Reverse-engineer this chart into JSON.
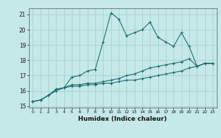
{
  "xlabel": "Humidex (Indice chaleur)",
  "bg_color": "#c5e8e8",
  "grid_color": "#a0cccc",
  "line_color": "#1a6b6b",
  "xlim": [
    -0.5,
    23.5
  ],
  "ylim": [
    14.9,
    21.4
  ],
  "yticks": [
    15,
    16,
    17,
    18,
    19,
    20,
    21
  ],
  "xticks": [
    0,
    1,
    2,
    3,
    4,
    5,
    6,
    7,
    8,
    9,
    10,
    11,
    12,
    13,
    14,
    15,
    16,
    17,
    18,
    19,
    20,
    21,
    22,
    23
  ],
  "line1_x": [
    0,
    1,
    2,
    3,
    4,
    5,
    6,
    7,
    8,
    9,
    10,
    11,
    12,
    13,
    14,
    15,
    16,
    17,
    18,
    19,
    20,
    21,
    22,
    23
  ],
  "line1_y": [
    15.3,
    15.4,
    15.7,
    16.1,
    16.2,
    16.9,
    17.0,
    17.3,
    17.4,
    19.2,
    21.1,
    20.7,
    19.6,
    19.8,
    20.0,
    20.5,
    19.5,
    19.2,
    18.9,
    19.8,
    18.9,
    17.6,
    17.8,
    17.8
  ],
  "line2_x": [
    0,
    1,
    2,
    3,
    4,
    5,
    6,
    7,
    8,
    9,
    10,
    11,
    12,
    13,
    14,
    15,
    16,
    17,
    18,
    19,
    20,
    21,
    22,
    23
  ],
  "line2_y": [
    15.3,
    15.4,
    15.7,
    16.1,
    16.2,
    16.4,
    16.4,
    16.5,
    16.5,
    16.6,
    16.7,
    16.8,
    17.0,
    17.1,
    17.3,
    17.5,
    17.6,
    17.7,
    17.8,
    17.9,
    18.1,
    17.6,
    17.8,
    17.8
  ],
  "line3_x": [
    0,
    1,
    2,
    3,
    4,
    5,
    6,
    7,
    8,
    9,
    10,
    11,
    12,
    13,
    14,
    15,
    16,
    17,
    18,
    19,
    20,
    21,
    22,
    23
  ],
  "line3_y": [
    15.3,
    15.4,
    15.7,
    16.0,
    16.2,
    16.3,
    16.3,
    16.4,
    16.4,
    16.5,
    16.5,
    16.6,
    16.7,
    16.7,
    16.8,
    16.9,
    17.0,
    17.1,
    17.2,
    17.3,
    17.5,
    17.6,
    17.8,
    17.8
  ]
}
